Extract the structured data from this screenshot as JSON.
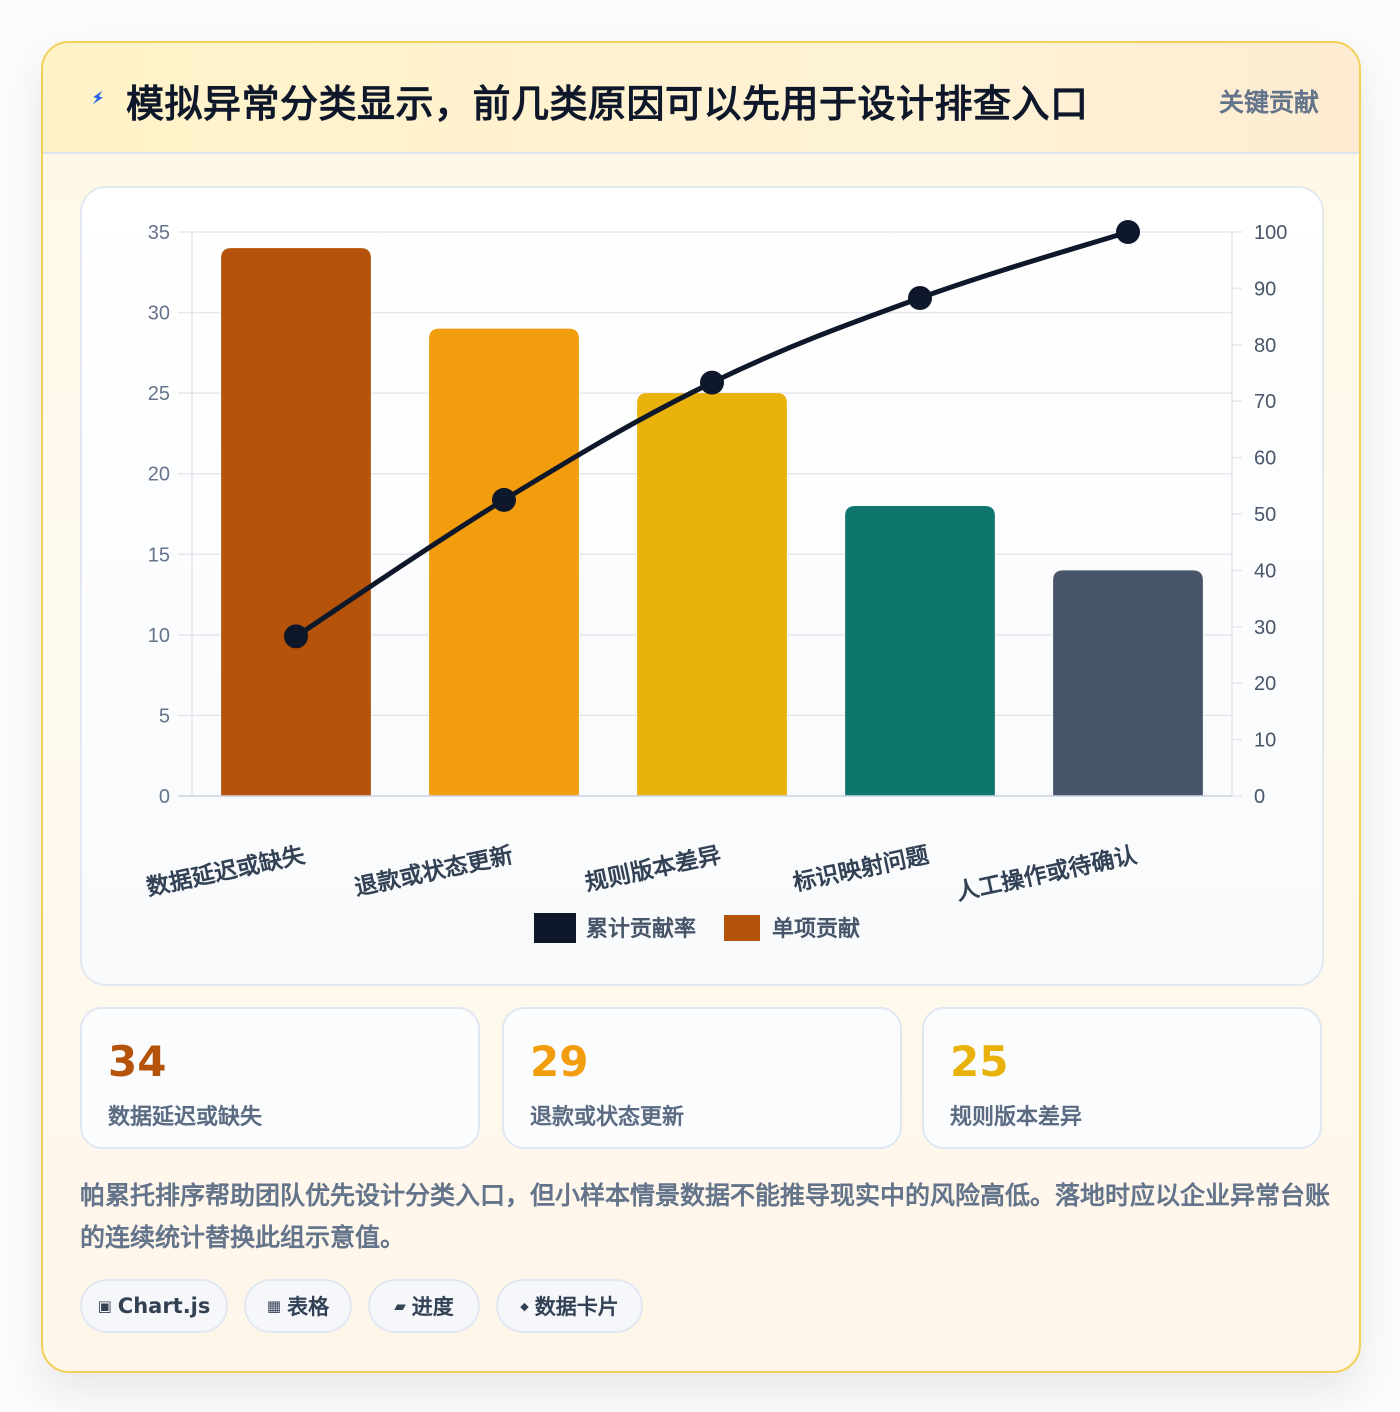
{
  "header": {
    "icon": "lightning-icon",
    "title": "模拟异常分类显示，前几类原因可以先用于设计排查入口",
    "tag": "关键贡献"
  },
  "chart_data": {
    "type": "bar",
    "categories": [
      "数据延迟或缺失",
      "退款或状态更新",
      "规则版本差异",
      "标识映射问题",
      "人工操作或待确认"
    ],
    "series": [
      {
        "name": "累计贡献率",
        "type": "line",
        "axis": "right",
        "values": [
          28.3,
          52.5,
          73.3,
          88.3,
          100
        ],
        "color": "#0f172a"
      },
      {
        "name": "单项贡献",
        "type": "bar",
        "axis": "left",
        "values": [
          34,
          29,
          25,
          18,
          14
        ],
        "colors": [
          "#b45309",
          "#f29d0e",
          "#e8b20b",
          "#0f766e",
          "#475569"
        ]
      }
    ],
    "ylim": [
      0,
      35
    ],
    "yticks": [
      0,
      5,
      10,
      15,
      20,
      25,
      30,
      35
    ],
    "y2lim": [
      0,
      100
    ],
    "y2ticks": [
      0,
      10,
      20,
      30,
      40,
      50,
      60,
      70,
      80,
      90,
      100
    ],
    "grid": true,
    "legend": "bottom"
  },
  "stats": [
    {
      "value": "34",
      "label": "数据延迟或缺失",
      "color": "#b45309"
    },
    {
      "value": "29",
      "label": "退款或状态更新",
      "color": "#f29d0e"
    },
    {
      "value": "25",
      "label": "规则版本差异",
      "color": "#e8b20b"
    }
  ],
  "note": "帕累托排序帮助团队优先设计分类入口，但小样本情景数据不能推导现实中的风险高低。落地时应以企业异常台账的连续统计替换此组示意值。",
  "tags": [
    {
      "icon": "▣",
      "label": "Chart.js"
    },
    {
      "icon": "▦",
      "label": "表格"
    },
    {
      "icon": "▰",
      "label": "进度"
    },
    {
      "icon": "◆",
      "label": "数据卡片"
    }
  ]
}
